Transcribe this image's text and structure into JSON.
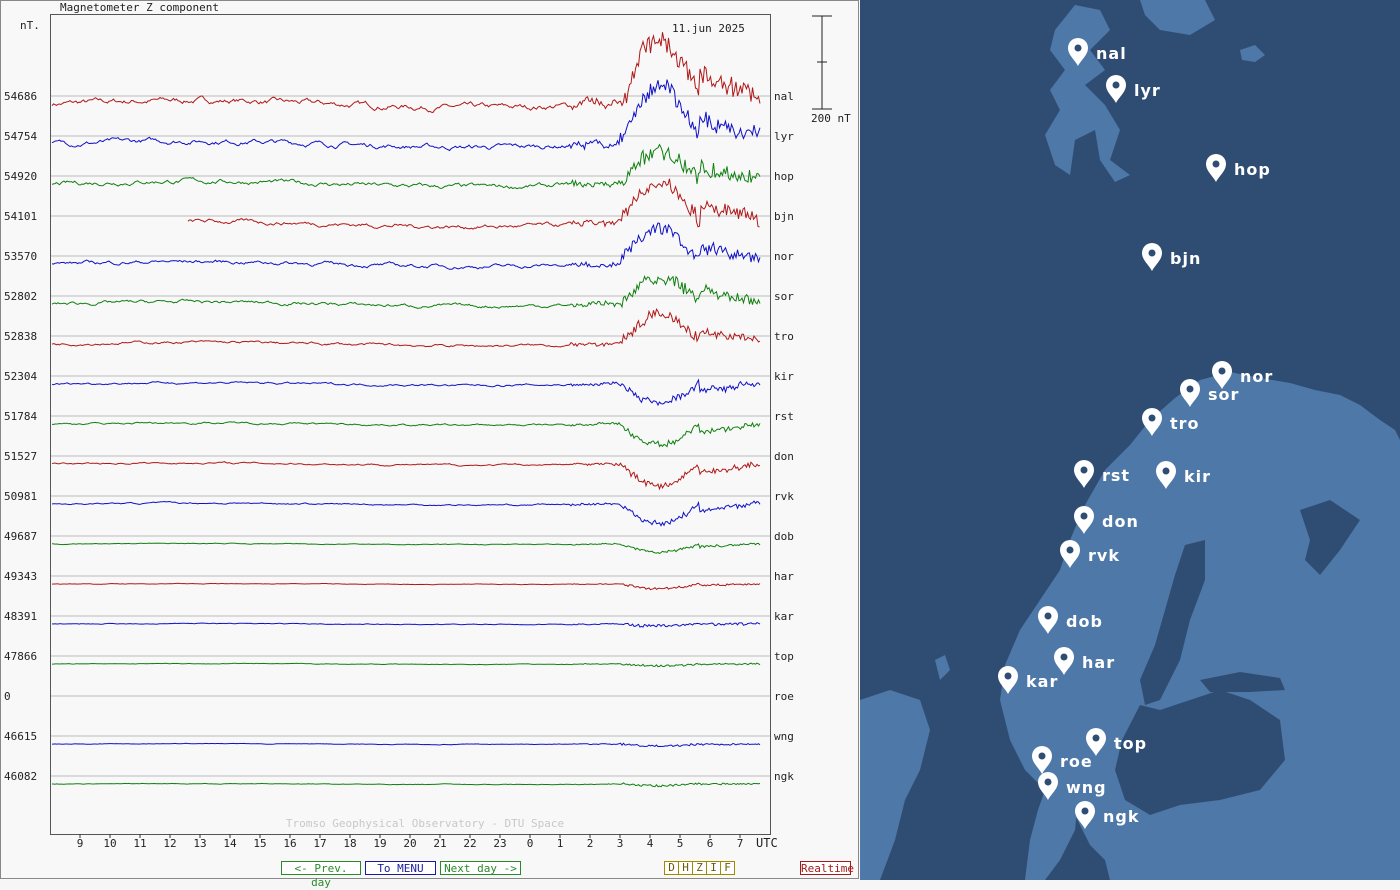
{
  "chart": {
    "title": "Magnetometer Z component",
    "unit_label": "nT.",
    "date_label": "11.jun 2025",
    "scale_label": "200 nT",
    "watermark": "Tromso Geophysical Observatory - DTU Space",
    "utc_label": "UTC"
  },
  "buttons": {
    "prev_day": "<- Prev. day",
    "menu": "To MENU",
    "next_day": "Next day ->",
    "realtime": "Realtime",
    "components": [
      "D",
      "H",
      "Z",
      "I",
      "F"
    ]
  },
  "chart_data": {
    "type": "line",
    "title": "Magnetometer Z component",
    "xlabel": "UTC",
    "x_ticks": [
      "9",
      "10",
      "11",
      "12",
      "13",
      "14",
      "15",
      "16",
      "17",
      "18",
      "19",
      "20",
      "21",
      "22",
      "23",
      "0",
      "1",
      "2",
      "3",
      "4",
      "5",
      "6",
      "7"
    ],
    "scale_bar_nT": 200,
    "grid": true,
    "colors": {
      "red": "#b01818",
      "blue": "#1010c8",
      "green": "#108010"
    },
    "series": [
      {
        "name": "nal",
        "baseline": "54686",
        "color": "red"
      },
      {
        "name": "lyr",
        "baseline": "54754",
        "color": "blue"
      },
      {
        "name": "hop",
        "baseline": "54920",
        "color": "green"
      },
      {
        "name": "bjn",
        "baseline": "54101",
        "color": "red"
      },
      {
        "name": "nor",
        "baseline": "53570",
        "color": "blue"
      },
      {
        "name": "sor",
        "baseline": "52802",
        "color": "green"
      },
      {
        "name": "tro",
        "baseline": "52838",
        "color": "red"
      },
      {
        "name": "kir",
        "baseline": "52304",
        "color": "blue"
      },
      {
        "name": "rst",
        "baseline": "51784",
        "color": "green"
      },
      {
        "name": "don",
        "baseline": "51527",
        "color": "red"
      },
      {
        "name": "rvk",
        "baseline": "50981",
        "color": "blue"
      },
      {
        "name": "dob",
        "baseline": "49687",
        "color": "green"
      },
      {
        "name": "har",
        "baseline": "49343",
        "color": "red"
      },
      {
        "name": "kar",
        "baseline": "48391",
        "color": "blue"
      },
      {
        "name": "top",
        "baseline": "47866",
        "color": "green"
      },
      {
        "name": "roe",
        "baseline": "0",
        "color": "red"
      },
      {
        "name": "wng",
        "baseline": "46615",
        "color": "blue"
      },
      {
        "name": "ngk",
        "baseline": "46082",
        "color": "green"
      }
    ]
  },
  "map": {
    "stations": [
      "nal",
      "lyr",
      "hop",
      "bjn",
      "nor",
      "sor",
      "tro",
      "rst",
      "kir",
      "don",
      "rvk",
      "dob",
      "har",
      "kar",
      "top",
      "roe",
      "wng",
      "ngk"
    ],
    "colors": {
      "sea": "#2f4d72",
      "land": "#4e78a8",
      "pin": "#ffffff"
    }
  }
}
